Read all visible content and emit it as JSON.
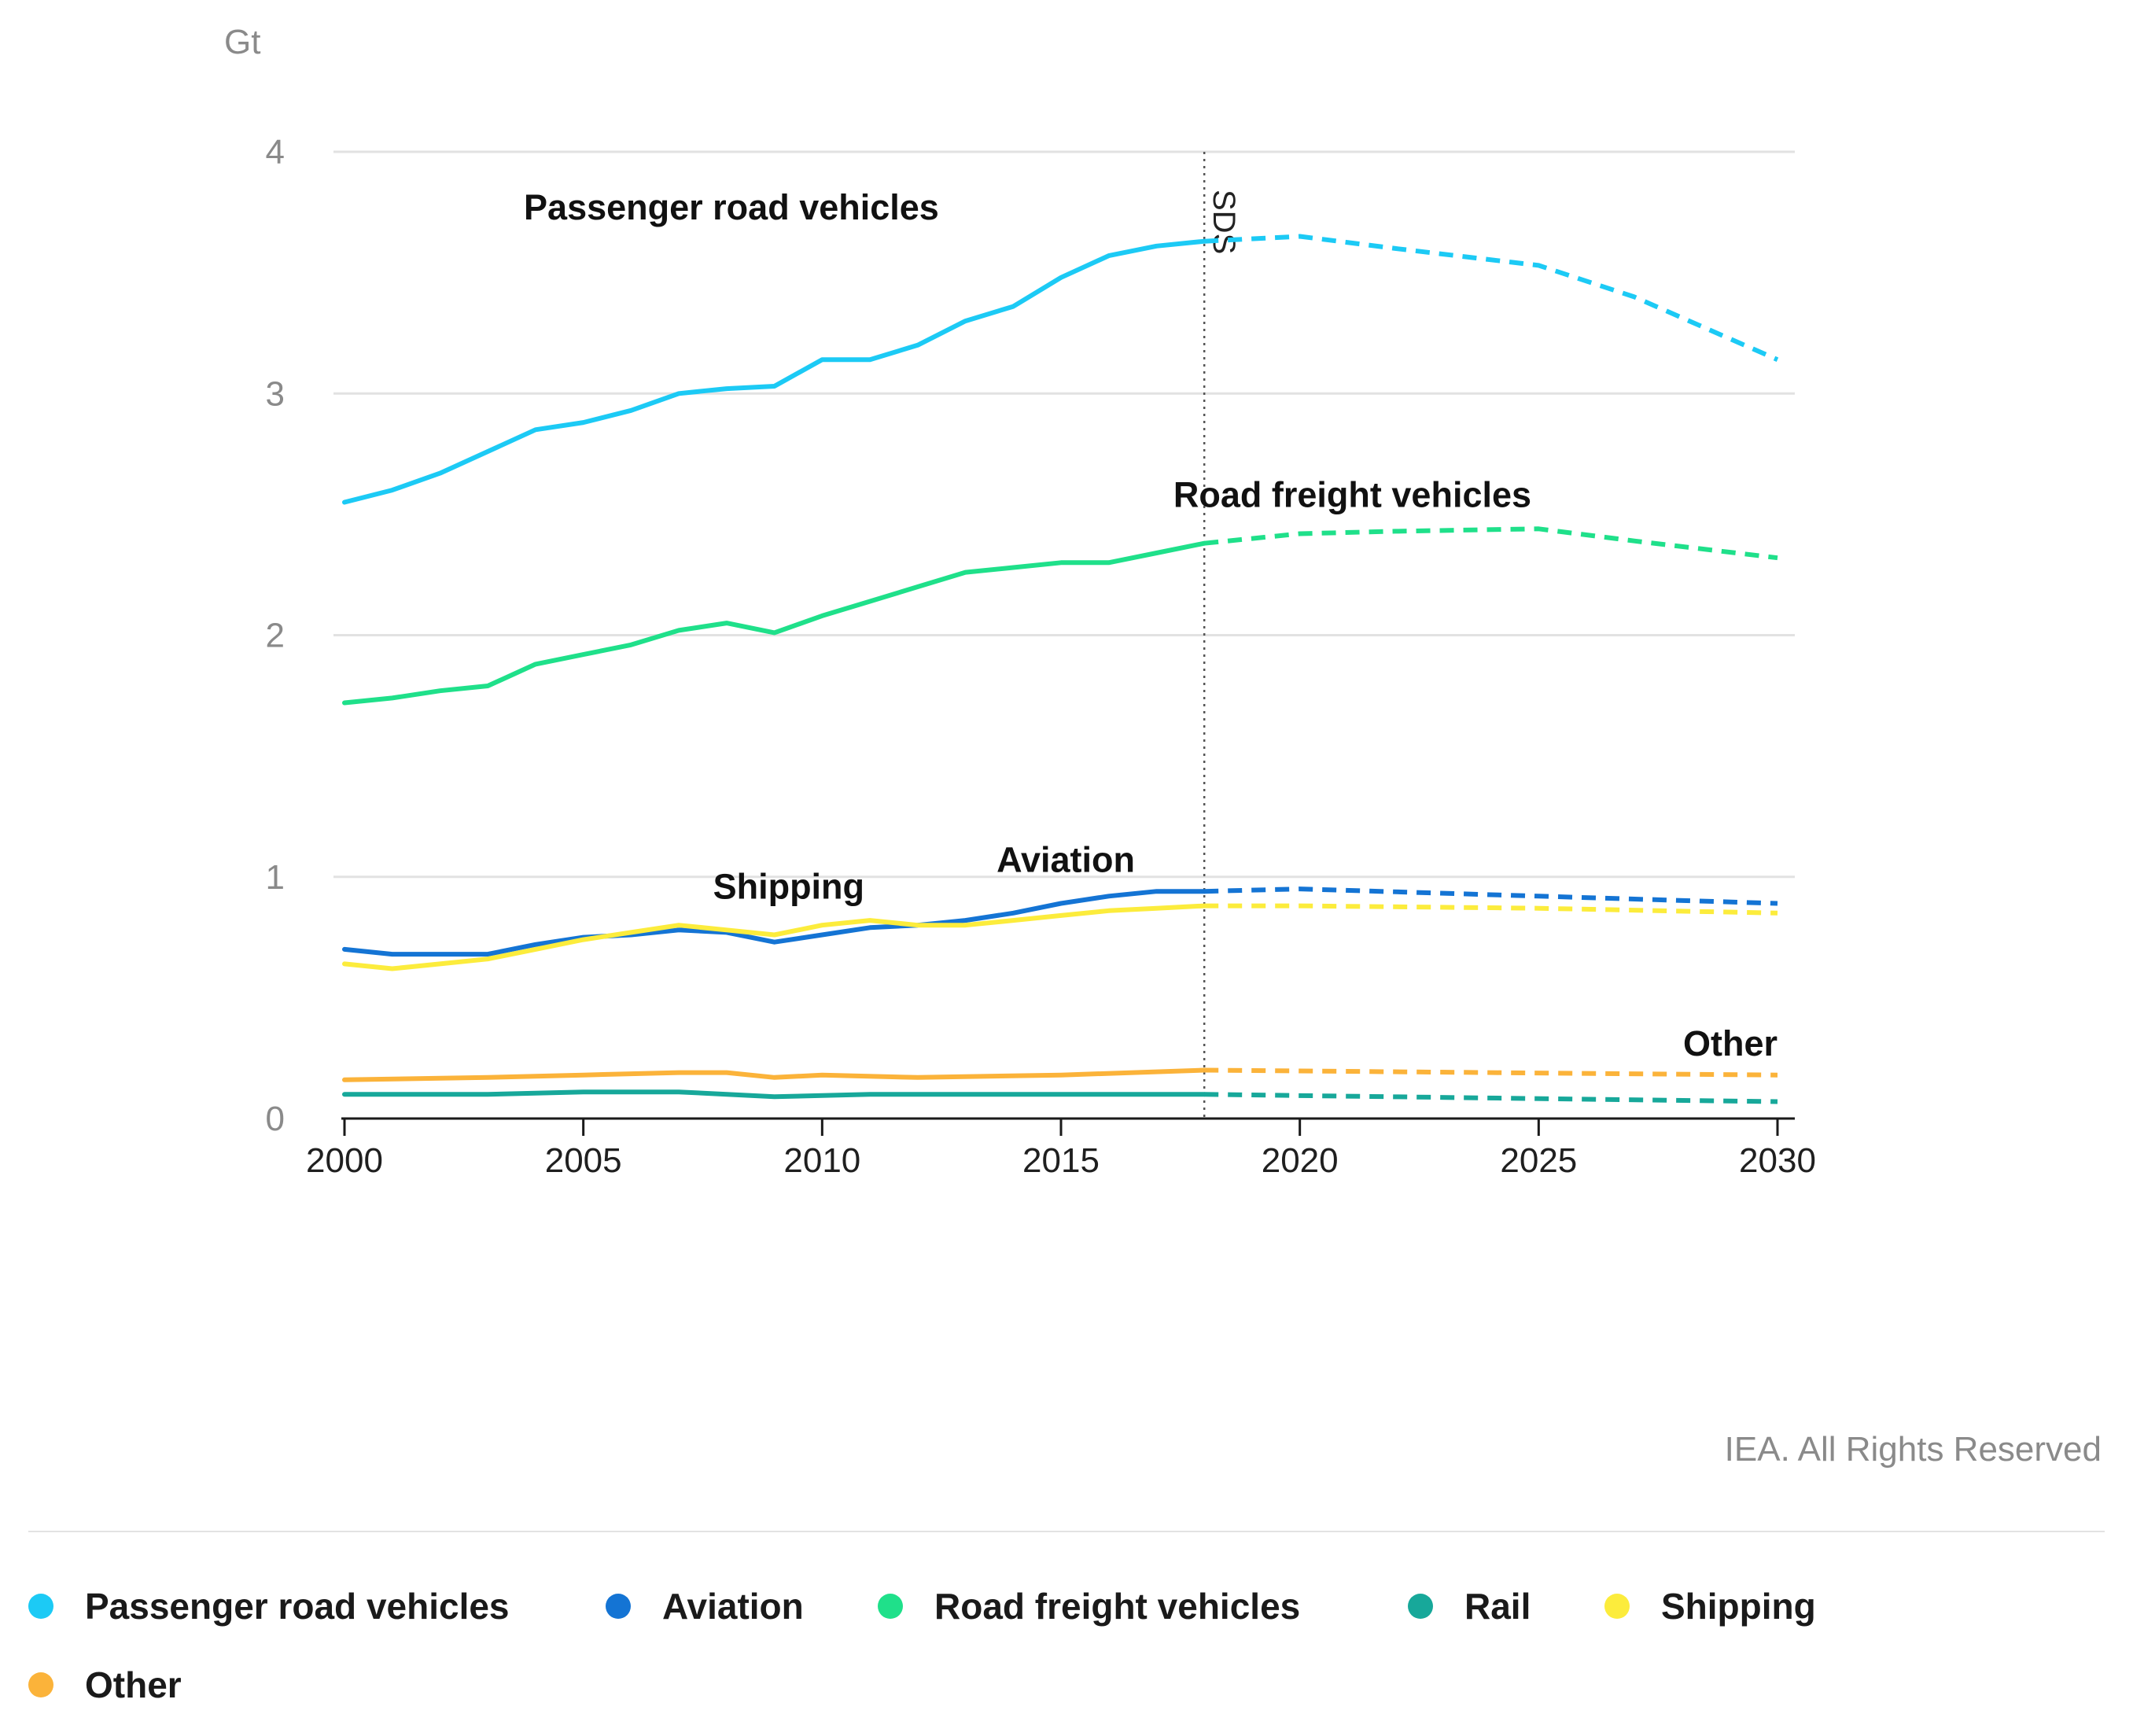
{
  "chart_data": {
    "type": "line",
    "unit_label": "Gt",
    "ylim": [
      0,
      4
    ],
    "y_ticks": [
      0,
      1,
      2,
      3,
      4
    ],
    "xlim": [
      2000,
      2030
    ],
    "x_ticks": [
      2000,
      2005,
      2010,
      2015,
      2020,
      2025,
      2030
    ],
    "divider": {
      "x": 2018,
      "label": "SDS"
    },
    "credit": "IEA. All Rights Reserved",
    "series": [
      {
        "name": "Passenger road vehicles",
        "color": "#1ccaf5",
        "historical": {
          "x": [
            2000,
            2001,
            2002,
            2003,
            2004,
            2005,
            2006,
            2007,
            2008,
            2009,
            2010,
            2011,
            2012,
            2013,
            2014,
            2015,
            2016,
            2017,
            2018
          ],
          "y": [
            2.55,
            2.6,
            2.67,
            2.76,
            2.85,
            2.88,
            2.93,
            3.0,
            3.02,
            3.03,
            3.14,
            3.14,
            3.2,
            3.3,
            3.36,
            3.48,
            3.57,
            3.61,
            3.63
          ]
        },
        "projection": {
          "x": [
            2018,
            2020,
            2022,
            2025,
            2027,
            2030
          ],
          "y": [
            3.63,
            3.65,
            3.6,
            3.53,
            3.4,
            3.14
          ]
        }
      },
      {
        "name": "Aviation",
        "color": "#1474d4",
        "historical": {
          "x": [
            2000,
            2001,
            2002,
            2003,
            2004,
            2005,
            2006,
            2007,
            2008,
            2009,
            2010,
            2011,
            2012,
            2013,
            2014,
            2015,
            2016,
            2017,
            2018
          ],
          "y": [
            0.7,
            0.68,
            0.68,
            0.68,
            0.72,
            0.75,
            0.76,
            0.78,
            0.77,
            0.73,
            0.76,
            0.79,
            0.8,
            0.82,
            0.85,
            0.89,
            0.92,
            0.94,
            0.94
          ]
        },
        "projection": {
          "x": [
            2018,
            2020,
            2025,
            2030
          ],
          "y": [
            0.94,
            0.95,
            0.92,
            0.89
          ]
        }
      },
      {
        "name": "Road freight vehicles",
        "color": "#1fe08a",
        "historical": {
          "x": [
            2000,
            2001,
            2002,
            2003,
            2004,
            2005,
            2006,
            2007,
            2008,
            2009,
            2010,
            2011,
            2012,
            2013,
            2014,
            2015,
            2016,
            2017,
            2018
          ],
          "y": [
            1.72,
            1.74,
            1.77,
            1.79,
            1.88,
            1.92,
            1.96,
            2.02,
            2.05,
            2.01,
            2.08,
            2.14,
            2.2,
            2.26,
            2.28,
            2.3,
            2.3,
            2.34,
            2.38
          ]
        },
        "projection": {
          "x": [
            2018,
            2020,
            2022,
            2025,
            2027,
            2030
          ],
          "y": [
            2.38,
            2.42,
            2.43,
            2.44,
            2.39,
            2.32
          ]
        }
      },
      {
        "name": "Rail",
        "color": "#17a89a",
        "historical": {
          "x": [
            2000,
            2003,
            2005,
            2007,
            2009,
            2011,
            2013,
            2015,
            2018
          ],
          "y": [
            0.1,
            0.1,
            0.11,
            0.11,
            0.09,
            0.1,
            0.1,
            0.1,
            0.1
          ]
        },
        "projection": {
          "x": [
            2018,
            2030
          ],
          "y": [
            0.1,
            0.07
          ]
        }
      },
      {
        "name": "Shipping",
        "color": "#fcec3c",
        "historical": {
          "x": [
            2000,
            2001,
            2002,
            2003,
            2004,
            2005,
            2006,
            2007,
            2008,
            2009,
            2010,
            2011,
            2012,
            2013,
            2014,
            2015,
            2016,
            2017,
            2018
          ],
          "y": [
            0.64,
            0.62,
            0.64,
            0.66,
            0.7,
            0.74,
            0.77,
            0.8,
            0.78,
            0.76,
            0.8,
            0.82,
            0.8,
            0.8,
            0.82,
            0.84,
            0.86,
            0.87,
            0.88
          ]
        },
        "projection": {
          "x": [
            2018,
            2020,
            2025,
            2030
          ],
          "y": [
            0.88,
            0.88,
            0.87,
            0.85
          ]
        }
      },
      {
        "name": "Other",
        "color": "#fbb33a",
        "historical": {
          "x": [
            2000,
            2003,
            2005,
            2007,
            2008,
            2009,
            2010,
            2012,
            2015,
            2018
          ],
          "y": [
            0.16,
            0.17,
            0.18,
            0.19,
            0.19,
            0.17,
            0.18,
            0.17,
            0.18,
            0.2
          ]
        },
        "projection": {
          "x": [
            2018,
            2030
          ],
          "y": [
            0.2,
            0.18
          ]
        }
      }
    ],
    "annotations": [
      {
        "series": "Passenger road vehicles",
        "text": "Passenger road vehicles",
        "x": 2008.1,
        "y": 3.72,
        "anchor": "middle"
      },
      {
        "series": "Road freight vehicles",
        "text": "Road freight vehicles",
        "x": 2021.1,
        "y": 2.53,
        "anchor": "middle"
      },
      {
        "series": "Shipping",
        "text": "Shipping",
        "x": 2009.3,
        "y": 0.91,
        "anchor": "middle"
      },
      {
        "series": "Aviation",
        "text": "Aviation",
        "x": 2015.1,
        "y": 1.02,
        "anchor": "middle"
      },
      {
        "series": "Other",
        "text": "Other",
        "x": 2030,
        "y": 0.26,
        "anchor": "end"
      }
    ]
  },
  "legend": [
    {
      "label": "Passenger road vehicles",
      "color": "#1ccaf5"
    },
    {
      "label": "Aviation",
      "color": "#1474d4"
    },
    {
      "label": "Road freight vehicles",
      "color": "#1fe08a"
    },
    {
      "label": "Rail",
      "color": "#17a89a"
    },
    {
      "label": "Shipping",
      "color": "#fcec3c"
    },
    {
      "label": "Other",
      "color": "#fbb33a"
    }
  ]
}
